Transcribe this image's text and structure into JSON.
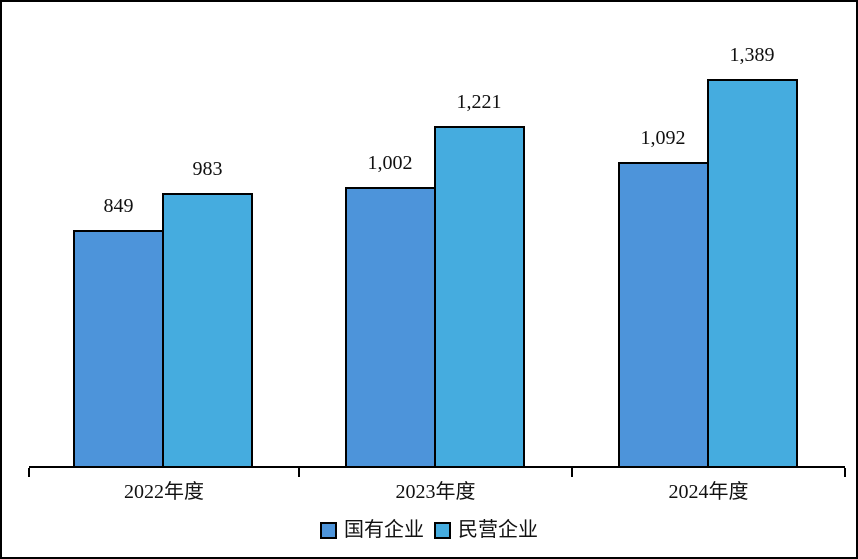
{
  "chart_data": {
    "type": "bar",
    "title": "",
    "xlabel": "",
    "ylabel": "",
    "categories": [
      "2022年度",
      "2023年度",
      "2024年度"
    ],
    "series": [
      {
        "name": "国有企业",
        "color": "#4D94DA",
        "values": [
          849,
          1002,
          1092
        ],
        "value_labels": [
          "849",
          "1,002",
          "1,092"
        ]
      },
      {
        "name": "民营企业",
        "color": "#45ACDF",
        "values": [
          983,
          1221,
          1389
        ],
        "value_labels": [
          "983",
          "1,221",
          "1,389"
        ]
      }
    ],
    "ylim": [
      0,
      1500
    ],
    "grid": false,
    "y_axis_shown": false,
    "value_labels_shown": true,
    "bar_outline_color": "#000000",
    "legend_position": "bottom"
  }
}
